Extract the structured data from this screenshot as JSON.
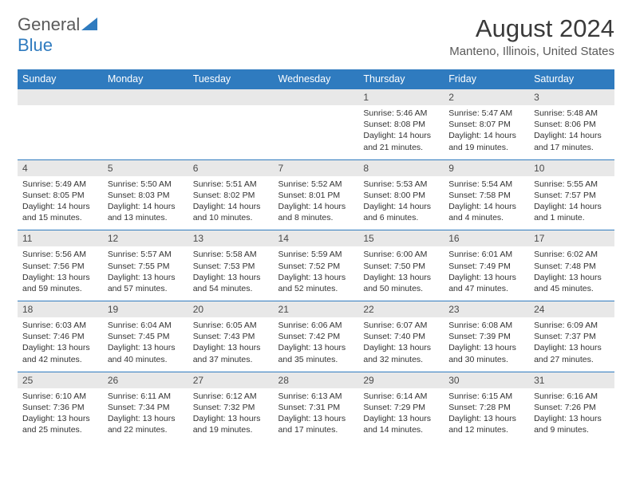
{
  "logo": {
    "word1": "General",
    "word2": "Blue"
  },
  "title": "August 2024",
  "location": "Manteno, Illinois, United States",
  "colors": {
    "accent": "#2f7bbf",
    "daynum_bg": "#e8e8e8",
    "text": "#333333",
    "header_text": "#ffffff",
    "logo_gray": "#5a5a5a"
  },
  "days_of_week": [
    "Sunday",
    "Monday",
    "Tuesday",
    "Wednesday",
    "Thursday",
    "Friday",
    "Saturday"
  ],
  "weeks": [
    [
      {
        "blank": true
      },
      {
        "blank": true
      },
      {
        "blank": true
      },
      {
        "blank": true
      },
      {
        "n": "1",
        "sr": "5:46 AM",
        "ss": "8:08 PM",
        "dl": "14 hours and 21 minutes."
      },
      {
        "n": "2",
        "sr": "5:47 AM",
        "ss": "8:07 PM",
        "dl": "14 hours and 19 minutes."
      },
      {
        "n": "3",
        "sr": "5:48 AM",
        "ss": "8:06 PM",
        "dl": "14 hours and 17 minutes."
      }
    ],
    [
      {
        "n": "4",
        "sr": "5:49 AM",
        "ss": "8:05 PM",
        "dl": "14 hours and 15 minutes."
      },
      {
        "n": "5",
        "sr": "5:50 AM",
        "ss": "8:03 PM",
        "dl": "14 hours and 13 minutes."
      },
      {
        "n": "6",
        "sr": "5:51 AM",
        "ss": "8:02 PM",
        "dl": "14 hours and 10 minutes."
      },
      {
        "n": "7",
        "sr": "5:52 AM",
        "ss": "8:01 PM",
        "dl": "14 hours and 8 minutes."
      },
      {
        "n": "8",
        "sr": "5:53 AM",
        "ss": "8:00 PM",
        "dl": "14 hours and 6 minutes."
      },
      {
        "n": "9",
        "sr": "5:54 AM",
        "ss": "7:58 PM",
        "dl": "14 hours and 4 minutes."
      },
      {
        "n": "10",
        "sr": "5:55 AM",
        "ss": "7:57 PM",
        "dl": "14 hours and 1 minute."
      }
    ],
    [
      {
        "n": "11",
        "sr": "5:56 AM",
        "ss": "7:56 PM",
        "dl": "13 hours and 59 minutes."
      },
      {
        "n": "12",
        "sr": "5:57 AM",
        "ss": "7:55 PM",
        "dl": "13 hours and 57 minutes."
      },
      {
        "n": "13",
        "sr": "5:58 AM",
        "ss": "7:53 PM",
        "dl": "13 hours and 54 minutes."
      },
      {
        "n": "14",
        "sr": "5:59 AM",
        "ss": "7:52 PM",
        "dl": "13 hours and 52 minutes."
      },
      {
        "n": "15",
        "sr": "6:00 AM",
        "ss": "7:50 PM",
        "dl": "13 hours and 50 minutes."
      },
      {
        "n": "16",
        "sr": "6:01 AM",
        "ss": "7:49 PM",
        "dl": "13 hours and 47 minutes."
      },
      {
        "n": "17",
        "sr": "6:02 AM",
        "ss": "7:48 PM",
        "dl": "13 hours and 45 minutes."
      }
    ],
    [
      {
        "n": "18",
        "sr": "6:03 AM",
        "ss": "7:46 PM",
        "dl": "13 hours and 42 minutes."
      },
      {
        "n": "19",
        "sr": "6:04 AM",
        "ss": "7:45 PM",
        "dl": "13 hours and 40 minutes."
      },
      {
        "n": "20",
        "sr": "6:05 AM",
        "ss": "7:43 PM",
        "dl": "13 hours and 37 minutes."
      },
      {
        "n": "21",
        "sr": "6:06 AM",
        "ss": "7:42 PM",
        "dl": "13 hours and 35 minutes."
      },
      {
        "n": "22",
        "sr": "6:07 AM",
        "ss": "7:40 PM",
        "dl": "13 hours and 32 minutes."
      },
      {
        "n": "23",
        "sr": "6:08 AM",
        "ss": "7:39 PM",
        "dl": "13 hours and 30 minutes."
      },
      {
        "n": "24",
        "sr": "6:09 AM",
        "ss": "7:37 PM",
        "dl": "13 hours and 27 minutes."
      }
    ],
    [
      {
        "n": "25",
        "sr": "6:10 AM",
        "ss": "7:36 PM",
        "dl": "13 hours and 25 minutes."
      },
      {
        "n": "26",
        "sr": "6:11 AM",
        "ss": "7:34 PM",
        "dl": "13 hours and 22 minutes."
      },
      {
        "n": "27",
        "sr": "6:12 AM",
        "ss": "7:32 PM",
        "dl": "13 hours and 19 minutes."
      },
      {
        "n": "28",
        "sr": "6:13 AM",
        "ss": "7:31 PM",
        "dl": "13 hours and 17 minutes."
      },
      {
        "n": "29",
        "sr": "6:14 AM",
        "ss": "7:29 PM",
        "dl": "13 hours and 14 minutes."
      },
      {
        "n": "30",
        "sr": "6:15 AM",
        "ss": "7:28 PM",
        "dl": "13 hours and 12 minutes."
      },
      {
        "n": "31",
        "sr": "6:16 AM",
        "ss": "7:26 PM",
        "dl": "13 hours and 9 minutes."
      }
    ]
  ],
  "labels": {
    "sunrise": "Sunrise: ",
    "sunset": "Sunset: ",
    "daylight": "Daylight: "
  }
}
